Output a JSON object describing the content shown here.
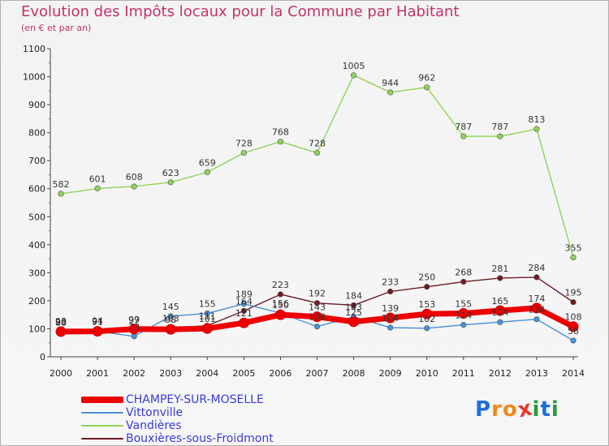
{
  "title": "Evolution des Impôts locaux pour la Commune par Habitant",
  "subtitle": "(en € et par an)",
  "logo": {
    "text": "Proxiti",
    "letter_colors": [
      "#1e6fd9",
      "#f08a1c",
      "#f08a1c",
      "#e63a2a",
      "#2b9a3c",
      "#1e6fd9",
      "#2b9a3c"
    ]
  },
  "chart_data": {
    "type": "line",
    "x": [
      2000,
      2001,
      2002,
      2003,
      2004,
      2005,
      2006,
      2007,
      2008,
      2009,
      2010,
      2011,
      2012,
      2013,
      2014
    ],
    "ylim": [
      0,
      1100
    ],
    "yticks": [
      0,
      100,
      200,
      300,
      400,
      500,
      600,
      700,
      800,
      900,
      1000,
      1100
    ],
    "grid": false,
    "legend_position": "bottom-left",
    "series": [
      {
        "name": "Vandières",
        "color": "#8fd45a",
        "values": [
          582,
          601,
          608,
          623,
          659,
          728,
          768,
          728,
          1005,
          944,
          962,
          787,
          787,
          813,
          355
        ]
      },
      {
        "name": "Bouxières-sous-Froidmont",
        "color": "#6e1a24",
        "values": [
          93,
          94,
          97,
          103,
          111,
          164,
          223,
          192,
          184,
          233,
          250,
          268,
          281,
          284,
          195
        ]
      },
      {
        "name": "Vittonville",
        "color": "#4a90d6",
        "values": [
          88,
          91,
          73,
          145,
          155,
          189,
          156,
          108,
          143,
          104,
          102,
          114,
          124,
          134,
          58
        ]
      },
      {
        "name": "CHAMPEY-SUR-MOSELLE",
        "color": "#ee0000",
        "values": [
          90,
          91,
          99,
          98,
          101,
          121,
          150,
          143,
          125,
          139,
          153,
          155,
          165,
          174,
          108
        ]
      }
    ],
    "legend": [
      {
        "name": "CHAMPEY-SUR-MOSELLE",
        "color": "#ee0000"
      },
      {
        "name": "Vittonville",
        "color": "#4a90d6"
      },
      {
        "name": "Vandières",
        "color": "#8fd45a"
      },
      {
        "name": "Bouxières-sous-Froidmont",
        "color": "#6e1a24"
      }
    ]
  }
}
